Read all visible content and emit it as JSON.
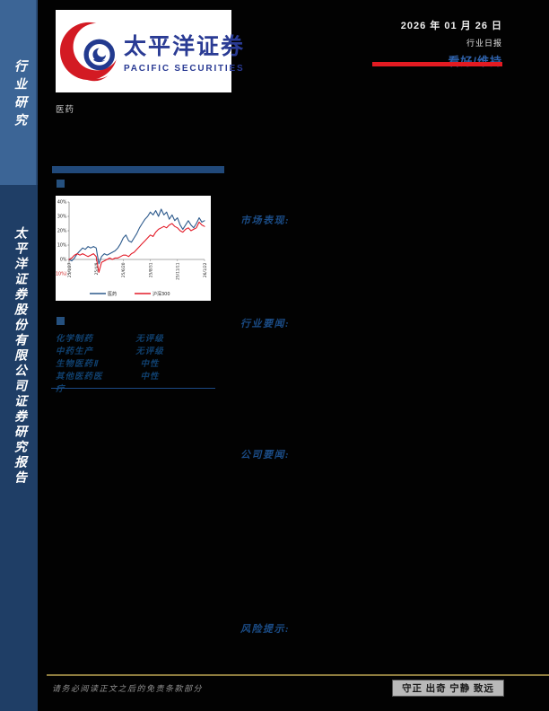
{
  "sidebar": {
    "top_label": "行业研究",
    "bottom_label": "太平洋证券股份有限公司证券研究报告",
    "top_bg": "#3c6596",
    "bottom_bg": "#1f3e66"
  },
  "header": {
    "logo_cn": "太平洋证券",
    "logo_en": "PACIFIC SECURITIES",
    "date": "2026 年 01 月 26 日",
    "report_type": "行业日报",
    "rating": "看好/维持",
    "rating_color": "#2f62ab",
    "accent_red": "#e31b22",
    "industry": "医药"
  },
  "ratings_table": {
    "rows": [
      {
        "name": "化学制药",
        "rating": "无评级"
      },
      {
        "name": "中药生产",
        "rating": "无评级"
      },
      {
        "name": "生物医药Ⅱ",
        "rating": "中性"
      },
      {
        "name": "其他医药医疗",
        "rating": "中性"
      }
    ]
  },
  "sections": [
    {
      "label": "市场表现:"
    },
    {
      "label": "行业要闻:"
    },
    {
      "label": "公司要闻:"
    },
    {
      "label": "风险提示:"
    }
  ],
  "footer": {
    "disclaimer": "请务必阅读正文之后的免责条款部分",
    "motto": "守正 出奇 宁静 致远"
  },
  "chart_data": {
    "type": "line",
    "title": "",
    "xlabel": "",
    "ylabel": "",
    "ylim": [
      -10,
      40
    ],
    "y_ticks": [
      40,
      30,
      20,
      10,
      0,
      -10
    ],
    "y_tick_labels": [
      "40%",
      "30%",
      "20%",
      "10%",
      "0%",
      "(10%)"
    ],
    "x_ticks": [
      "25/1/27",
      "25/4/9",
      "25/6/20",
      "25/8/31",
      "25/11/11",
      "26/1/22"
    ],
    "grid": false,
    "legend_position": "bottom",
    "series": [
      {
        "name": "医药",
        "color": "#2d5a8c",
        "values": [
          0,
          -1,
          1,
          4,
          6,
          8,
          7,
          9,
          8,
          9,
          8,
          -3,
          2,
          4,
          3,
          4,
          5,
          6,
          8,
          11,
          15,
          17,
          13,
          12,
          15,
          18,
          22,
          25,
          28,
          30,
          33,
          31,
          34,
          30,
          35,
          31,
          33,
          28,
          31,
          27,
          29,
          24,
          21,
          24,
          27,
          24,
          22,
          25,
          29,
          26,
          27
        ]
      },
      {
        "name": "沪深300",
        "color": "#e31b28",
        "values": [
          0,
          1,
          3,
          4,
          3,
          4,
          3,
          2,
          3,
          4,
          2,
          -9,
          -2,
          -1,
          0,
          1,
          0,
          1,
          1,
          2,
          3,
          3,
          2,
          4,
          5,
          7,
          9,
          11,
          13,
          15,
          17,
          16,
          19,
          21,
          22,
          23,
          22,
          24,
          25,
          23,
          22,
          20,
          19,
          21,
          22,
          20,
          21,
          22,
          26,
          24,
          23
        ]
      }
    ]
  }
}
